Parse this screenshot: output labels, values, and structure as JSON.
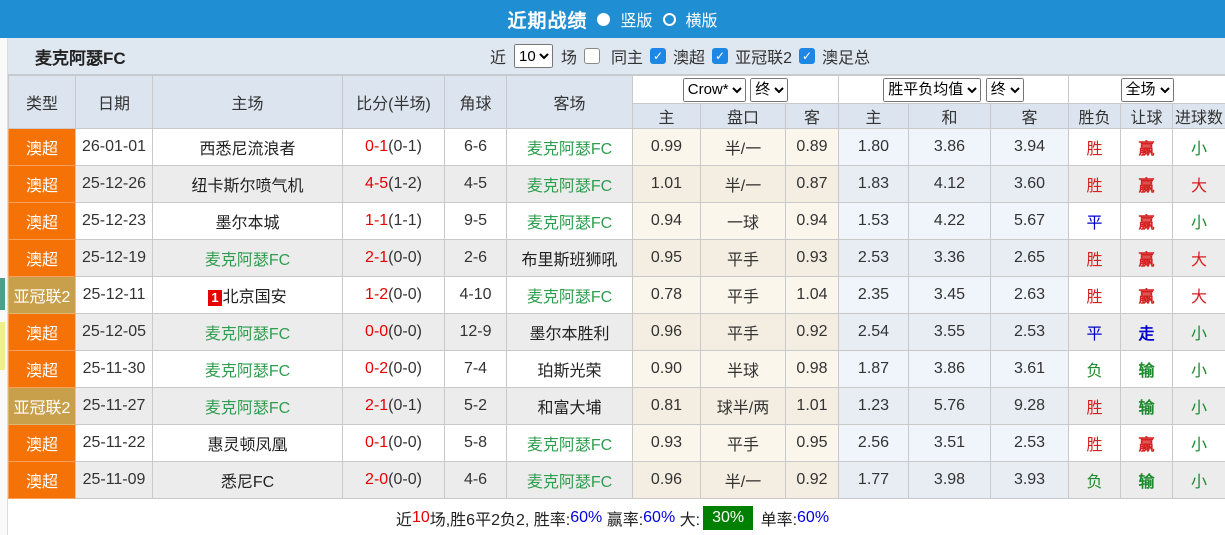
{
  "topbar": {
    "title": "近期战绩",
    "vertical_label": "竖版",
    "horizontal_label": "横版"
  },
  "filterbar": {
    "team": "麦克阿瑟FC",
    "near_label": "近",
    "matches_count": "10",
    "matches_label": "场",
    "same_home_label": "同主",
    "league_filters": [
      "澳超",
      "亚冠联2",
      "澳足总"
    ]
  },
  "table": {
    "headers": {
      "type": "类型",
      "date": "日期",
      "home": "主场",
      "score": "比分(半场)",
      "corners": "角球",
      "away": "客场",
      "odds_company_select": "Crow*",
      "odds_final_select": "终",
      "avg_select": "胜平负均值",
      "avg_final_select": "终",
      "full_select": "全场",
      "odds_sub_home": "主",
      "odds_sub_line": "盘口",
      "odds_sub_away": "客",
      "avg_sub_home": "主",
      "avg_sub_draw": "和",
      "avg_sub_away": "客",
      "res_sub_wdl": "胜负",
      "res_sub_let": "让球",
      "res_sub_goals": "进球数"
    },
    "rows": [
      {
        "type": "澳超",
        "league": "aus",
        "date": "26-01-01",
        "home": "西悉尼流浪者",
        "home_green": false,
        "badge": "",
        "score_ft": "0-1",
        "score_ht": "(0-1)",
        "corners": "6-6",
        "away": "麦克阿瑟FC",
        "away_green": true,
        "odds_home": "0.99",
        "handicap": "半/一",
        "odds_away": "0.89",
        "avg_home": "1.80",
        "avg_draw": "3.86",
        "avg_away": "3.94",
        "result": "胜",
        "result_color": "red",
        "let": "赢",
        "let_color": "red",
        "goals": "小",
        "goals_color": "green"
      },
      {
        "type": "澳超",
        "league": "aus",
        "date": "25-12-26",
        "home": "纽卡斯尔喷气机",
        "home_green": false,
        "badge": "",
        "score_ft": "4-5",
        "score_ht": "(1-2)",
        "corners": "4-5",
        "away": "麦克阿瑟FC",
        "away_green": true,
        "odds_home": "1.01",
        "handicap": "半/一",
        "odds_away": "0.87",
        "avg_home": "1.83",
        "avg_draw": "4.12",
        "avg_away": "3.60",
        "result": "胜",
        "result_color": "red",
        "let": "赢",
        "let_color": "red",
        "goals": "大",
        "goals_color": "red"
      },
      {
        "type": "澳超",
        "league": "aus",
        "date": "25-12-23",
        "home": "墨尔本城",
        "home_green": false,
        "badge": "",
        "score_ft": "1-1",
        "score_ht": "(1-1)",
        "corners": "9-5",
        "away": "麦克阿瑟FC",
        "away_green": true,
        "odds_home": "0.94",
        "handicap": "一球",
        "odds_away": "0.94",
        "avg_home": "1.53",
        "avg_draw": "4.22",
        "avg_away": "5.67",
        "result": "平",
        "result_color": "blue",
        "let": "赢",
        "let_color": "red",
        "goals": "小",
        "goals_color": "green"
      },
      {
        "type": "澳超",
        "league": "aus",
        "date": "25-12-19",
        "home": "麦克阿瑟FC",
        "home_green": true,
        "badge": "",
        "score_ft": "2-1",
        "score_ht": "(0-0)",
        "corners": "2-6",
        "away": "布里斯班狮吼",
        "away_green": false,
        "odds_home": "0.95",
        "handicap": "平手",
        "odds_away": "0.93",
        "avg_home": "2.53",
        "avg_draw": "3.36",
        "avg_away": "2.65",
        "result": "胜",
        "result_color": "red",
        "let": "赢",
        "let_color": "red",
        "goals": "大",
        "goals_color": "red"
      },
      {
        "type": "亚冠联2",
        "league": "acl",
        "date": "25-12-11",
        "home": "北京国安",
        "home_green": false,
        "badge": "1",
        "score_ft": "1-2",
        "score_ht": "(0-0)",
        "corners": "4-10",
        "away": "麦克阿瑟FC",
        "away_green": true,
        "odds_home": "0.78",
        "handicap": "平手",
        "odds_away": "1.04",
        "avg_home": "2.35",
        "avg_draw": "3.45",
        "avg_away": "2.63",
        "result": "胜",
        "result_color": "red",
        "let": "赢",
        "let_color": "red",
        "goals": "大",
        "goals_color": "red"
      },
      {
        "type": "澳超",
        "league": "aus",
        "date": "25-12-05",
        "home": "麦克阿瑟FC",
        "home_green": true,
        "badge": "",
        "score_ft": "0-0",
        "score_ht": "(0-0)",
        "corners": "12-9",
        "away": "墨尔本胜利",
        "away_green": false,
        "odds_home": "0.96",
        "handicap": "平手",
        "odds_away": "0.92",
        "avg_home": "2.54",
        "avg_draw": "3.55",
        "avg_away": "2.53",
        "result": "平",
        "result_color": "blue",
        "let": "走",
        "let_color": "blue",
        "goals": "小",
        "goals_color": "green"
      },
      {
        "type": "澳超",
        "league": "aus",
        "date": "25-11-30",
        "home": "麦克阿瑟FC",
        "home_green": true,
        "badge": "",
        "score_ft": "0-2",
        "score_ht": "(0-0)",
        "corners": "7-4",
        "away": "珀斯光荣",
        "away_green": false,
        "odds_home": "0.90",
        "handicap": "半球",
        "odds_away": "0.98",
        "avg_home": "1.87",
        "avg_draw": "3.86",
        "avg_away": "3.61",
        "result": "负",
        "result_color": "green",
        "let": "输",
        "let_color": "green",
        "goals": "小",
        "goals_color": "green"
      },
      {
        "type": "亚冠联2",
        "league": "acl",
        "date": "25-11-27",
        "home": "麦克阿瑟FC",
        "home_green": true,
        "badge": "",
        "score_ft": "2-1",
        "score_ht": "(0-1)",
        "corners": "5-2",
        "away": "和富大埔",
        "away_green": false,
        "odds_home": "0.81",
        "handicap": "球半/两",
        "odds_away": "1.01",
        "avg_home": "1.23",
        "avg_draw": "5.76",
        "avg_away": "9.28",
        "result": "胜",
        "result_color": "red",
        "let": "输",
        "let_color": "green",
        "goals": "小",
        "goals_color": "green"
      },
      {
        "type": "澳超",
        "league": "aus",
        "date": "25-11-22",
        "home": "惠灵顿凤凰",
        "home_green": false,
        "badge": "",
        "score_ft": "0-1",
        "score_ht": "(0-0)",
        "corners": "5-8",
        "away": "麦克阿瑟FC",
        "away_green": true,
        "odds_home": "0.93",
        "handicap": "平手",
        "odds_away": "0.95",
        "avg_home": "2.56",
        "avg_draw": "3.51",
        "avg_away": "2.53",
        "result": "胜",
        "result_color": "red",
        "let": "赢",
        "let_color": "red",
        "goals": "小",
        "goals_color": "green"
      },
      {
        "type": "澳超",
        "league": "aus",
        "date": "25-11-09",
        "home": "悉尼FC",
        "home_green": false,
        "badge": "",
        "score_ft": "2-0",
        "score_ht": "(0-0)",
        "corners": "4-6",
        "away": "麦克阿瑟FC",
        "away_green": true,
        "odds_home": "0.96",
        "handicap": "半/一",
        "odds_away": "0.92",
        "avg_home": "1.77",
        "avg_draw": "3.98",
        "avg_away": "3.93",
        "result": "负",
        "result_color": "green",
        "let": "输",
        "let_color": "green",
        "goals": "小",
        "goals_color": "green"
      }
    ]
  },
  "footer": {
    "prefix": "近",
    "count": "10",
    "mid": "场,胜6平2负2, 胜率:",
    "win_rate": "60%",
    "let_label": "赢率:",
    "let_rate": "60%",
    "big_label": "大:",
    "big_rate": "30%",
    "single_label": "单率:",
    "single_rate": "60%"
  },
  "colors": {
    "topbar_blue": "#1f8ed2",
    "league_orange": "#f57207",
    "league_gold": "#c8a04b",
    "team_green": "#2e9e4e",
    "score_red": "#e60000",
    "result_blue": "#0000cc",
    "result_green": "#1e8a2e",
    "big_rate_bg": "#008000",
    "checkbox_blue": "#1e87e5"
  }
}
